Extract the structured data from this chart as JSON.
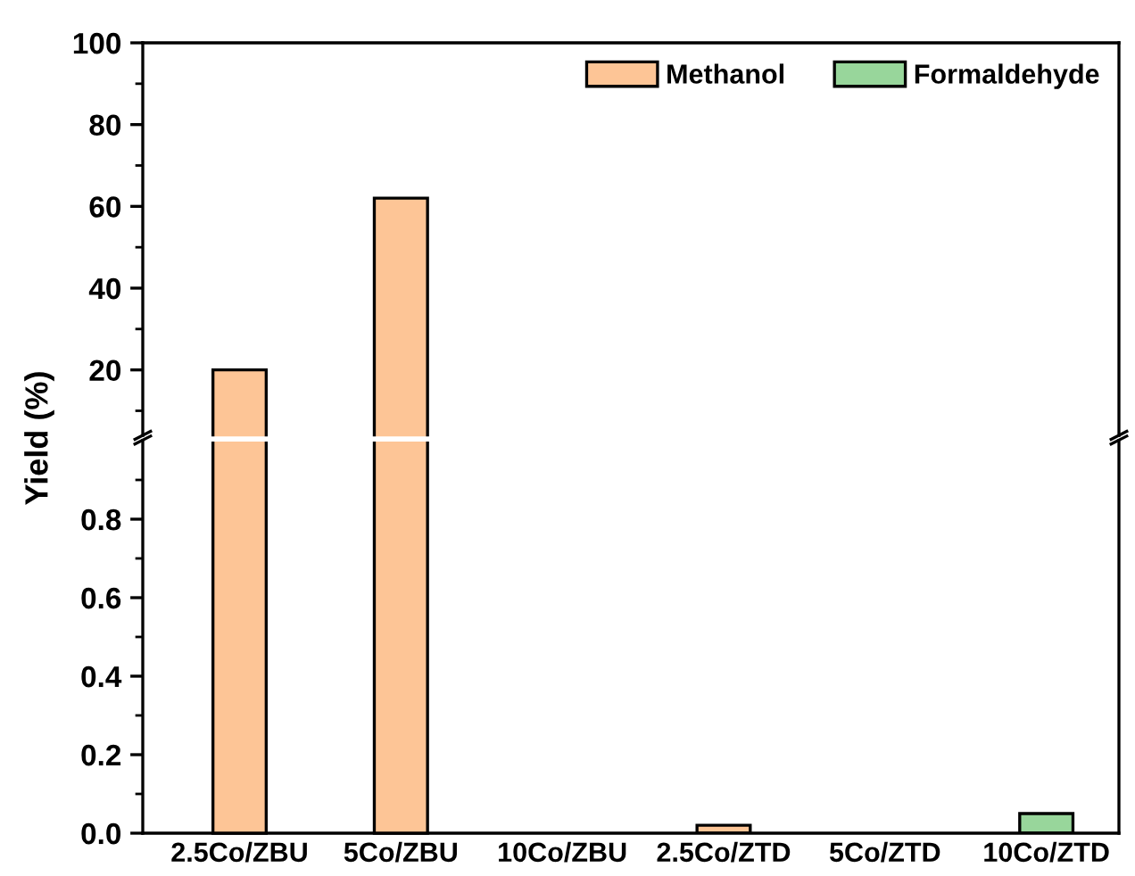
{
  "chart_data": [
    {
      "type": "bar",
      "ylabel": "Yield (%)",
      "categories": [
        null,
        null,
        null,
        null,
        null,
        null
      ],
      "ylim": [
        4,
        100
      ],
      "yticks": [
        20,
        40,
        60,
        80,
        100
      ],
      "tick_labels": "y",
      "legend": "top right",
      "series": [
        {
          "name": "Methanol",
          "color": "#fdc596",
          "values": [
            20,
            62,
            null,
            null,
            null,
            null
          ]
        },
        {
          "name": "Formaldehyde",
          "color": "#98d69b",
          "values": [
            null,
            null,
            null,
            null,
            null,
            null
          ]
        }
      ]
    },
    {
      "type": "bar",
      "categories": [
        "2.5Co/ZBU",
        "5Co/ZBU",
        "10Co/ZBU",
        "2.5Co/ZTD",
        "5Co/ZTD",
        "10Co/ZTD"
      ],
      "ylim": [
        0,
        1.0
      ],
      "yticks": [
        {
          "value": 0,
          "label": "0.0"
        },
        0.2,
        0.4,
        0.6,
        0.8
      ],
      "series": [
        {
          "color": "#fdc596",
          "values": [
            null,
            null,
            null,
            0.02,
            null,
            null
          ]
        },
        {
          "color": "#98d69b",
          "values": [
            null,
            null,
            null,
            null,
            null,
            0.05
          ]
        }
      ]
    }
  ]
}
